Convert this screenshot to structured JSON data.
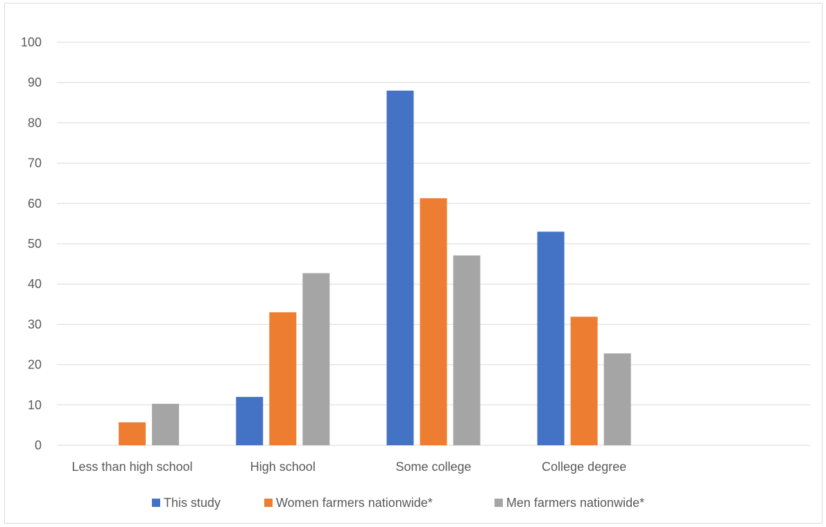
{
  "chart_data": {
    "type": "bar",
    "title": "",
    "xlabel": "",
    "ylabel": "",
    "categories": [
      "Less than high school",
      "High school",
      "Some college",
      "College degree",
      ""
    ],
    "series": [
      {
        "name": "This study",
        "color": "#4472c4",
        "values": [
          0,
          12,
          88,
          53,
          null
        ]
      },
      {
        "name": "Women farmers nationwide*",
        "color": "#ed7d31",
        "values": [
          5.7,
          33,
          61.3,
          31.9,
          null
        ]
      },
      {
        "name": "Men farmers nationwide*",
        "color": "#a5a5a5",
        "values": [
          10.3,
          42.7,
          47.1,
          22.8,
          null
        ]
      }
    ],
    "ylim": [
      0,
      100
    ],
    "yticks": [
      0,
      10,
      20,
      30,
      40,
      50,
      60,
      70,
      80,
      90,
      100
    ],
    "grid": true,
    "legend": "bottom"
  }
}
